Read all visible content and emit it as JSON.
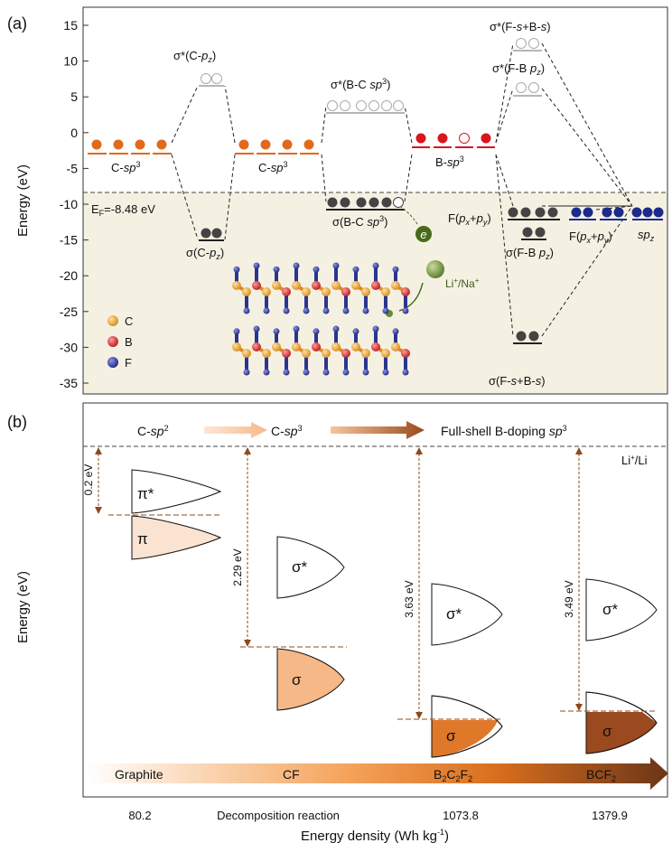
{
  "panel_a": {
    "label": "(a)",
    "ylabel": "Energy (eV)",
    "yticks": [
      "15",
      "10",
      "5",
      "0",
      "-5",
      "-10",
      "-15",
      "-20",
      "-25",
      "-30",
      "-35"
    ],
    "fermi_label": "E",
    "fermi_sub": "F",
    "fermi_value": "=-8.48 eV",
    "labels": {
      "c_sp3_1_main": "C-",
      "c_sp3_1_it": "sp",
      "c_sp3_1_sup": "3",
      "sigma_cpz_star": "σ*(C-",
      "cpz_it": "p",
      "cpz_sub": "z",
      "close": ")",
      "sigma_cpz": "σ(C-",
      "c_sp3_2_main": "C-",
      "sigma_bc_star": "σ*(B-C ",
      "bc_it": "sp",
      "bc_sup": "3",
      "sigma_bc": "σ(B-C ",
      "b_sp3_main": "B-",
      "sigma_fs_star": "σ*(F-",
      "fs_it1": "s",
      "fs_mid": "+B-",
      "fs_it2": "s",
      "sigma_fb_star": "σ*(F-B ",
      "fb_it": "p",
      "fb_sub": "z",
      "f_px_py": "F(",
      "px": "p",
      "x": "x",
      "plus": "+",
      "py": "p",
      "y": "y",
      "sigma_fb": "σ(F-B ",
      "spz_it": "sp",
      "spz_sub": "z",
      "sigma_fs": "σ(F-",
      "e_label": "e",
      "li_na": "Li",
      "na": "/Na",
      "plus_sup": "+"
    },
    "legend": [
      {
        "label": "C",
        "color": "#e0952a"
      },
      {
        "label": "B",
        "color": "#cc2a2a"
      },
      {
        "label": "F",
        "color": "#2a3590"
      }
    ]
  },
  "panel_b": {
    "label": "(b)",
    "ylabel": "Energy (eV)",
    "xlabel": "Energy density (Wh kg",
    "xlabel_sup": "-1",
    "xlabel_close": ")",
    "header": {
      "c_sp2": "C-",
      "sp2_it": "sp",
      "sp2_sup": "2",
      "c_sp3": "C-",
      "sp3_it": "sp",
      "sp3_sup": "3",
      "full_shell": "Full-shell B-doping ",
      "fs_it": "sp",
      "fs_sup": "3"
    },
    "li_ref": "Li",
    "li_ref_sup": "+",
    "li_ref_tail": "/Li",
    "gaps": [
      "0.2 eV",
      "2.29 eV",
      "3.63 eV",
      "3.49 eV"
    ],
    "bands": {
      "pi_star": "π*",
      "pi": "π",
      "sigma_star": "σ*",
      "sigma": "σ"
    },
    "materials": {
      "graphite": "Graphite",
      "cf": "CF",
      "b2c2f2_b": "B",
      "b2c2f2_2a": "2",
      "b2c2f2_c": "C",
      "b2c2f2_2b": "2",
      "b2c2f2_f": "F",
      "b2c2f2_2c": "2",
      "bcf2": "BCF",
      "bcf2_sub": "2"
    },
    "energy_densities": [
      "80.2",
      "Decomposition reaction",
      "1073.8",
      "1379.9"
    ],
    "colors": {
      "graphite_fill": "#fbe3d2",
      "cf_fill": "#f6b887",
      "b2c2f2_fill": "#e0782a",
      "bcf2_fill": "#9a4a1e",
      "arrow_dark": "#6b3518",
      "gap_arrow": "#8b4a1e"
    }
  }
}
